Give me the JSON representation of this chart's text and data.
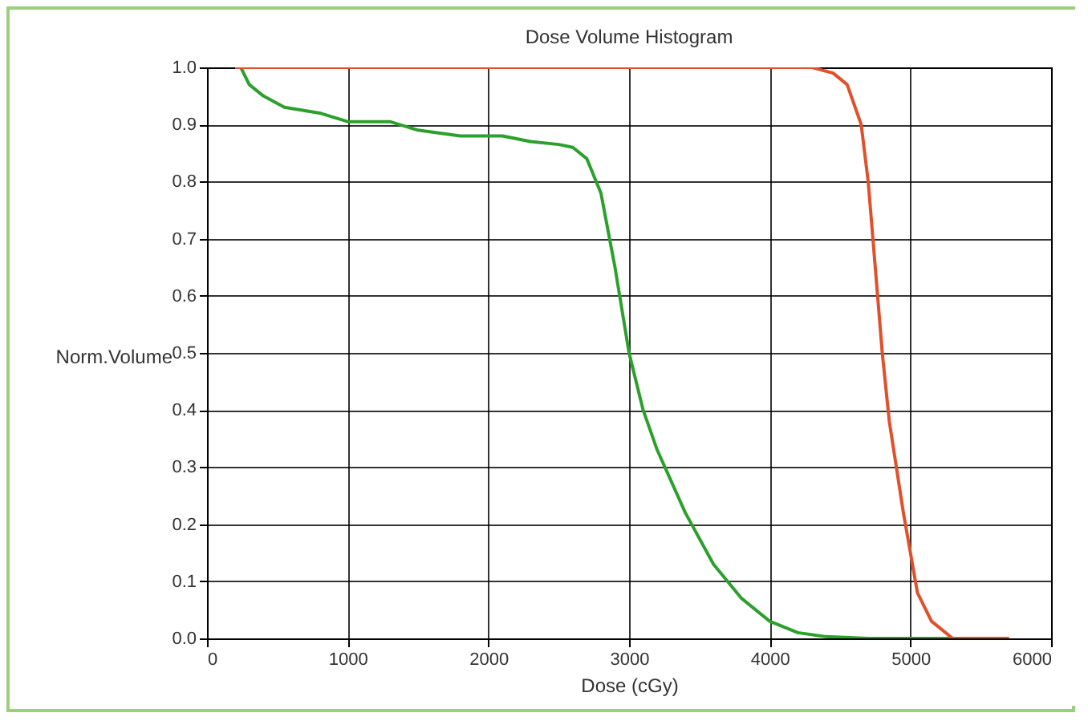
{
  "chart_data": {
    "type": "line",
    "title": "Dose Volume Histogram",
    "xlabel": "Dose (cGy)",
    "ylabel": "Norm.Volume",
    "xlim": [
      0,
      6000
    ],
    "ylim": [
      0,
      1
    ],
    "xticks": [
      0,
      1000,
      2000,
      3000,
      4000,
      5000,
      6000
    ],
    "yticks": [
      {
        "value": 0,
        "label": "0.0"
      },
      0.1,
      0.2,
      0.3,
      0.4,
      0.5,
      0.6,
      0.7,
      0.8,
      0.9,
      {
        "value": 1,
        "label": "1.0"
      }
    ],
    "grid": true,
    "line_style": "solid",
    "series": [
      {
        "color": "#2ca02c",
        "x": [
          240,
          300,
          400,
          550,
          800,
          1000,
          1300,
          1500,
          1800,
          2100,
          2300,
          2500,
          2600,
          2700,
          2800,
          2900,
          3000,
          3100,
          3200,
          3400,
          3600,
          3800,
          4000,
          4200,
          4400,
          4700,
          5700
        ],
        "values": [
          1,
          0.97,
          0.95,
          0.93,
          0.92,
          0.905,
          0.905,
          0.89,
          0.88,
          0.88,
          0.87,
          0.865,
          0.86,
          0.84,
          0.78,
          0.65,
          0.5,
          0.4,
          0.33,
          0.22,
          0.13,
          0.07,
          0.03,
          0.01,
          0.003,
          0,
          0
        ]
      },
      {
        "color": "#e0502a",
        "x": [
          200,
          4300,
          4450,
          4550,
          4650,
          4700,
          4750,
          4800,
          4850,
          4900,
          4950,
          5000,
          5050,
          5150,
          5300,
          5700
        ],
        "values": [
          1,
          1,
          0.99,
          0.97,
          0.9,
          0.8,
          0.65,
          0.5,
          0.38,
          0.3,
          0.22,
          0.15,
          0.08,
          0.03,
          0,
          0
        ]
      }
    ]
  }
}
